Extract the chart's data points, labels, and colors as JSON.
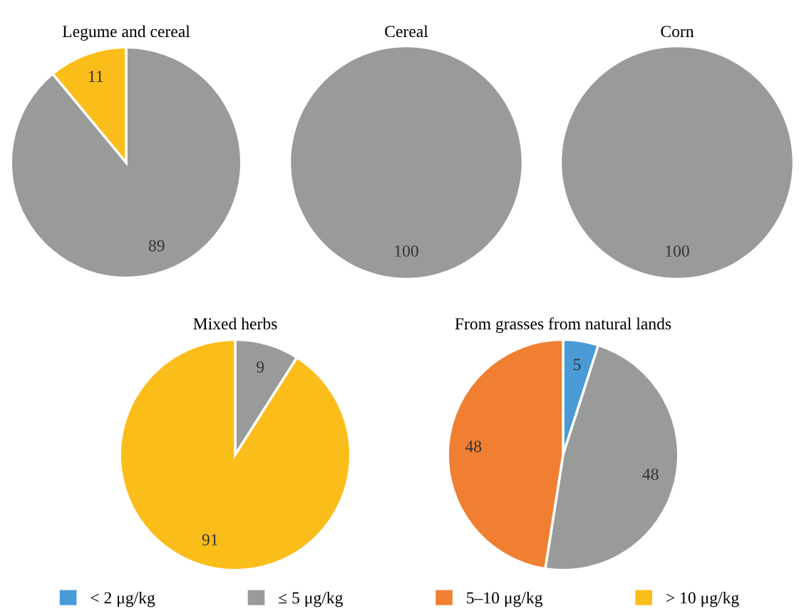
{
  "chart_data": [
    {
      "type": "pie",
      "title": "Legume and cereal",
      "categories": [
        "< 2 μg/kg",
        "≤ 5 μg/kg",
        "5–10 μg/kg",
        "> 10 μg/kg"
      ],
      "values": [
        0,
        89,
        0,
        11
      ],
      "value_labels": [
        null,
        "89",
        null,
        "11"
      ],
      "colors": [
        "#4a9ad6",
        "#999b9b",
        "#f07f32",
        "#fbbd19"
      ],
      "legend": "bottom"
    },
    {
      "type": "pie",
      "title": "Cereal",
      "values": [
        100
      ],
      "data_labels": true,
      "colors": [
        "#999b9b"
      ]
    },
    {
      "type": "pie",
      "title": "Corn",
      "values": [
        100
      ],
      "data_labels": true,
      "colors": [
        "#999b9b"
      ]
    },
    {
      "type": "pie",
      "title": "Mixed herbs",
      "values": [
        9,
        91
      ],
      "data_labels": true,
      "colors": [
        "#999b9b",
        "#fbbd19"
      ]
    },
    {
      "type": "pie",
      "title": "From grasses from natural lands",
      "values": [
        5,
        48,
        48
      ],
      "data_labels": true,
      "colors": [
        "#4a9ad6",
        "#999b9b",
        "#f07f32"
      ]
    }
  ]
}
